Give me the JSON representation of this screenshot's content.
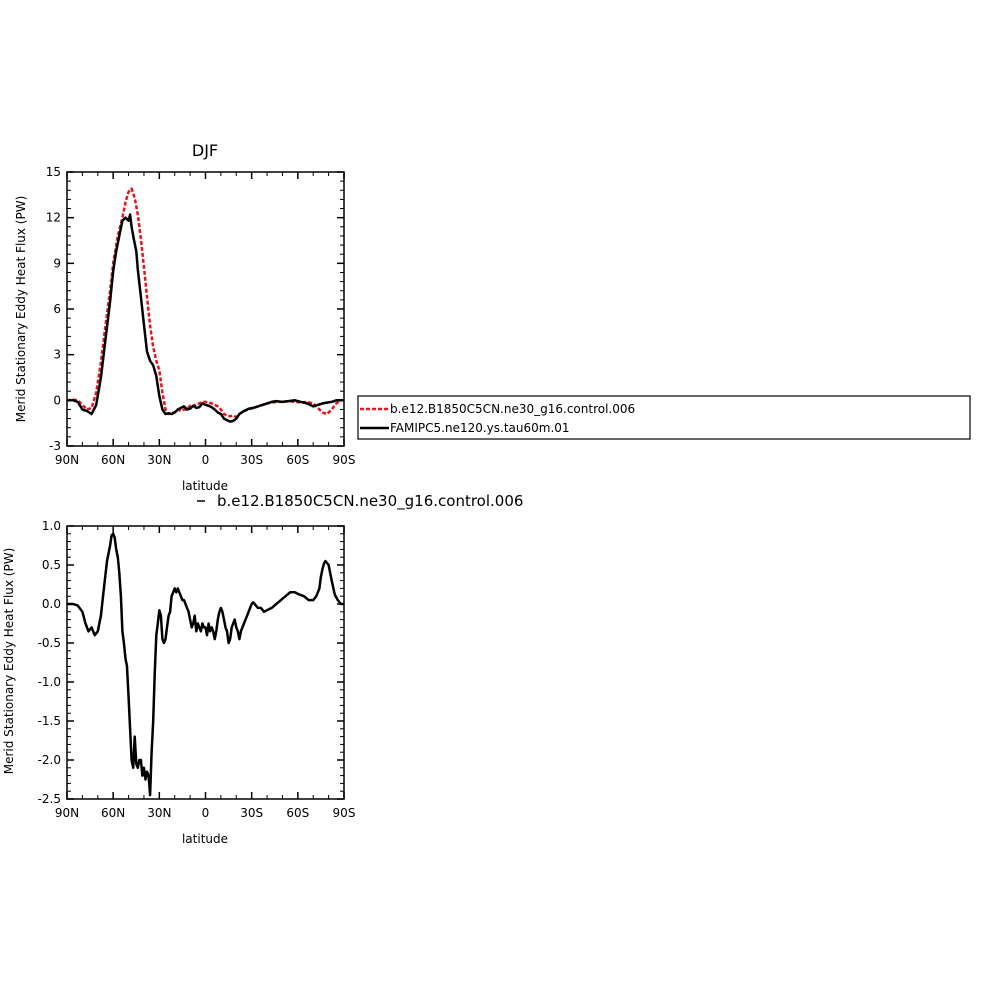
{
  "chart_data": [
    {
      "type": "line",
      "title": "DJF",
      "xlabel": "latitude",
      "ylabel": "Merid Stationary Eddy Heat Flux (PW)",
      "xlim": [
        90,
        -90
      ],
      "ylim": [
        -3,
        15
      ],
      "x_ticks": [
        90,
        60,
        30,
        0,
        -30,
        -60,
        -90
      ],
      "x_tick_labels": [
        "90N",
        "60N",
        "30N",
        "0",
        "30S",
        "60S",
        "90S"
      ],
      "y_ticks": [
        -3,
        0,
        3,
        6,
        9,
        12,
        15
      ],
      "y_tick_labels": [
        "-3",
        "0",
        "3",
        "6",
        "9",
        "12",
        "15"
      ],
      "legend": {
        "placement": "right",
        "entries": [
          "b.e12.B1850C5CN.ne30_g16.control.006",
          "FAMIPC5.ne120.ys.tau60m.01"
        ]
      },
      "series": [
        {
          "name": "b.e12.B1850C5CN.ne30_g16.control.006",
          "color": "#e8141c",
          "dash": true,
          "x": [
            90,
            86,
            83,
            80,
            77,
            74,
            71,
            68,
            65,
            62,
            60,
            57,
            54,
            52,
            50,
            48,
            46,
            44,
            42,
            40,
            38,
            36,
            34,
            32,
            30,
            28,
            26,
            24,
            22,
            20,
            18,
            16,
            14,
            12,
            10,
            8,
            6,
            4,
            2,
            0,
            -2,
            -4,
            -6,
            -8,
            -10,
            -12,
            -14,
            -16,
            -18,
            -20,
            -22,
            -25,
            -28,
            -31,
            -34,
            -37,
            -40,
            -43,
            -46,
            -50,
            -54,
            -58,
            -62,
            -66,
            -70,
            -73,
            -76,
            -79,
            -82,
            -85,
            -88,
            -90
          ],
          "y": [
            0,
            0.05,
            0,
            -0.3,
            -0.6,
            -0.5,
            0.5,
            2.5,
            4.9,
            7.2,
            9.0,
            10.8,
            12.0,
            13.0,
            13.7,
            13.9,
            13.3,
            12.2,
            10.6,
            8.8,
            6.8,
            4.9,
            3.5,
            2.6,
            2.0,
            0.5,
            -0.6,
            -0.9,
            -0.8,
            -0.8,
            -0.6,
            -0.7,
            -0.6,
            -0.6,
            -0.35,
            -0.4,
            -0.25,
            -0.2,
            -0.1,
            -0.1,
            -0.15,
            -0.2,
            -0.3,
            -0.4,
            -0.6,
            -0.9,
            -1.0,
            -1.05,
            -1.0,
            -1.1,
            -0.9,
            -0.7,
            -0.6,
            -0.5,
            -0.4,
            -0.3,
            -0.2,
            -0.15,
            -0.1,
            -0.1,
            -0.05,
            -0.1,
            -0.15,
            -0.1,
            -0.2,
            -0.5,
            -0.8,
            -0.9,
            -0.6,
            -0.2,
            0,
            0
          ]
        },
        {
          "name": "FAMIPC5.ne120.ys.tau60m.01",
          "color": "#000000",
          "dash": false,
          "x": [
            90,
            86,
            83,
            80,
            77,
            74,
            71,
            68,
            65,
            62,
            60,
            58,
            56,
            54,
            52,
            50,
            49,
            48,
            47,
            46,
            45,
            44,
            42,
            40,
            38,
            36,
            34,
            32,
            30,
            28,
            26,
            24,
            22,
            20,
            18,
            16,
            14,
            12,
            10,
            8,
            6,
            4,
            2,
            0,
            -2,
            -4,
            -6,
            -8,
            -10,
            -12,
            -14,
            -16,
            -18,
            -20,
            -22,
            -25,
            -28,
            -31,
            -34,
            -37,
            -40,
            -43,
            -46,
            -50,
            -54,
            -58,
            -62,
            -66,
            -70,
            -73,
            -76,
            -79,
            -82,
            -85,
            -88,
            -90
          ],
          "y": [
            0,
            0,
            -0.1,
            -0.6,
            -0.7,
            -0.9,
            -0.3,
            1.5,
            4.0,
            6.5,
            8.5,
            9.8,
            10.8,
            11.8,
            12.0,
            11.8,
            12.2,
            11.4,
            10.8,
            10.3,
            9.8,
            8.6,
            6.8,
            5.0,
            3.2,
            2.6,
            2.3,
            1.6,
            0.3,
            -0.6,
            -0.9,
            -0.85,
            -0.9,
            -0.8,
            -0.6,
            -0.5,
            -0.4,
            -0.6,
            -0.55,
            -0.35,
            -0.5,
            -0.45,
            -0.2,
            -0.3,
            -0.35,
            -0.45,
            -0.6,
            -0.8,
            -0.9,
            -1.2,
            -1.3,
            -1.4,
            -1.35,
            -1.2,
            -0.9,
            -0.7,
            -0.55,
            -0.5,
            -0.4,
            -0.3,
            -0.2,
            -0.1,
            -0.05,
            -0.1,
            -0.05,
            0,
            -0.1,
            -0.2,
            -0.4,
            -0.3,
            -0.2,
            -0.15,
            -0.1,
            0,
            0,
            0
          ]
        }
      ]
    },
    {
      "type": "line",
      "title": "b.e12.B1850C5CN.ne30_g16.control.006",
      "xlabel": "latitude",
      "ylabel": "Merid Stationary Eddy Heat Flux (PW)",
      "xlim": [
        90,
        -90
      ],
      "ylim": [
        -2.5,
        1.0
      ],
      "x_ticks": [
        90,
        60,
        30,
        0,
        -30,
        -60,
        -90
      ],
      "x_tick_labels": [
        "90N",
        "60N",
        "30N",
        "0",
        "30S",
        "60S",
        "90S"
      ],
      "y_ticks": [
        -2.5,
        -2.0,
        -1.5,
        -1.0,
        -0.5,
        0.0,
        0.5,
        1.0
      ],
      "y_tick_labels": [
        "-2.5",
        "-2.0",
        "-1.5",
        "-1.0",
        "-0.5",
        "0.0",
        "0.5",
        "1.0"
      ],
      "series": [
        {
          "color": "#000000",
          "dash": false,
          "x": [
            90,
            86,
            83,
            80,
            78,
            76,
            74,
            72,
            70,
            68,
            66,
            64,
            62,
            61,
            60,
            59,
            58,
            57,
            56,
            55,
            54,
            53,
            52,
            51,
            50,
            49,
            48,
            47,
            46,
            45,
            44,
            43,
            42,
            41,
            40,
            39,
            38,
            37,
            36,
            35,
            34,
            33,
            32,
            31,
            30,
            29,
            28,
            27,
            26,
            25,
            24,
            23,
            22,
            21,
            20,
            19,
            18,
            17,
            16,
            15,
            14,
            13,
            12,
            11,
            10,
            9,
            8,
            7,
            6,
            5,
            4,
            3,
            2,
            1,
            0,
            -1,
            -2,
            -3,
            -4,
            -5,
            -6,
            -7,
            -8,
            -9,
            -10,
            -11,
            -12,
            -13,
            -14,
            -15,
            -16,
            -17,
            -18,
            -19,
            -20,
            -21,
            -22,
            -23,
            -24,
            -25,
            -26,
            -27,
            -28,
            -29,
            -30,
            -31,
            -32,
            -34,
            -36,
            -38,
            -40,
            -43,
            -46,
            -49,
            -52,
            -55,
            -58,
            -61,
            -64,
            -67,
            -70,
            -72,
            -74,
            -75,
            -76,
            -77,
            -78,
            -80,
            -82,
            -84,
            -86,
            -88,
            -90
          ],
          "y": [
            0,
            0,
            -0.02,
            -0.1,
            -0.25,
            -0.35,
            -0.3,
            -0.4,
            -0.35,
            -0.15,
            0.2,
            0.55,
            0.75,
            0.88,
            0.9,
            0.85,
            0.7,
            0.6,
            0.4,
            0.1,
            -0.35,
            -0.5,
            -0.7,
            -0.8,
            -1.2,
            -1.6,
            -2.0,
            -2.1,
            -1.7,
            -2.05,
            -2.1,
            -2.0,
            -2.0,
            -2.2,
            -2.1,
            -2.25,
            -2.15,
            -2.2,
            -2.45,
            -1.9,
            -1.5,
            -0.9,
            -0.4,
            -0.25,
            -0.08,
            -0.15,
            -0.45,
            -0.5,
            -0.45,
            -0.3,
            -0.15,
            -0.1,
            0.1,
            0.15,
            0.2,
            0.15,
            0.2,
            0.15,
            0.1,
            0.05,
            0.05,
            0.0,
            -0.05,
            -0.1,
            -0.2,
            -0.3,
            -0.25,
            -0.15,
            -0.35,
            -0.25,
            -0.3,
            -0.35,
            -0.25,
            -0.3,
            -0.3,
            -0.4,
            -0.25,
            -0.35,
            -0.3,
            -0.35,
            -0.45,
            -0.35,
            -0.2,
            -0.1,
            -0.05,
            -0.1,
            -0.2,
            -0.3,
            -0.35,
            -0.5,
            -0.45,
            -0.3,
            -0.25,
            -0.2,
            -0.3,
            -0.35,
            -0.45,
            -0.35,
            -0.3,
            -0.25,
            -0.2,
            -0.15,
            -0.1,
            -0.05,
            0.0,
            0.02,
            0.0,
            -0.05,
            -0.05,
            -0.1,
            -0.08,
            -0.05,
            0.0,
            0.05,
            0.1,
            0.15,
            0.15,
            0.12,
            0.1,
            0.05,
            0.05,
            0.1,
            0.2,
            0.35,
            0.45,
            0.52,
            0.55,
            0.5,
            0.3,
            0.12,
            0.05,
            0.0,
            0.0
          ]
        }
      ]
    }
  ]
}
